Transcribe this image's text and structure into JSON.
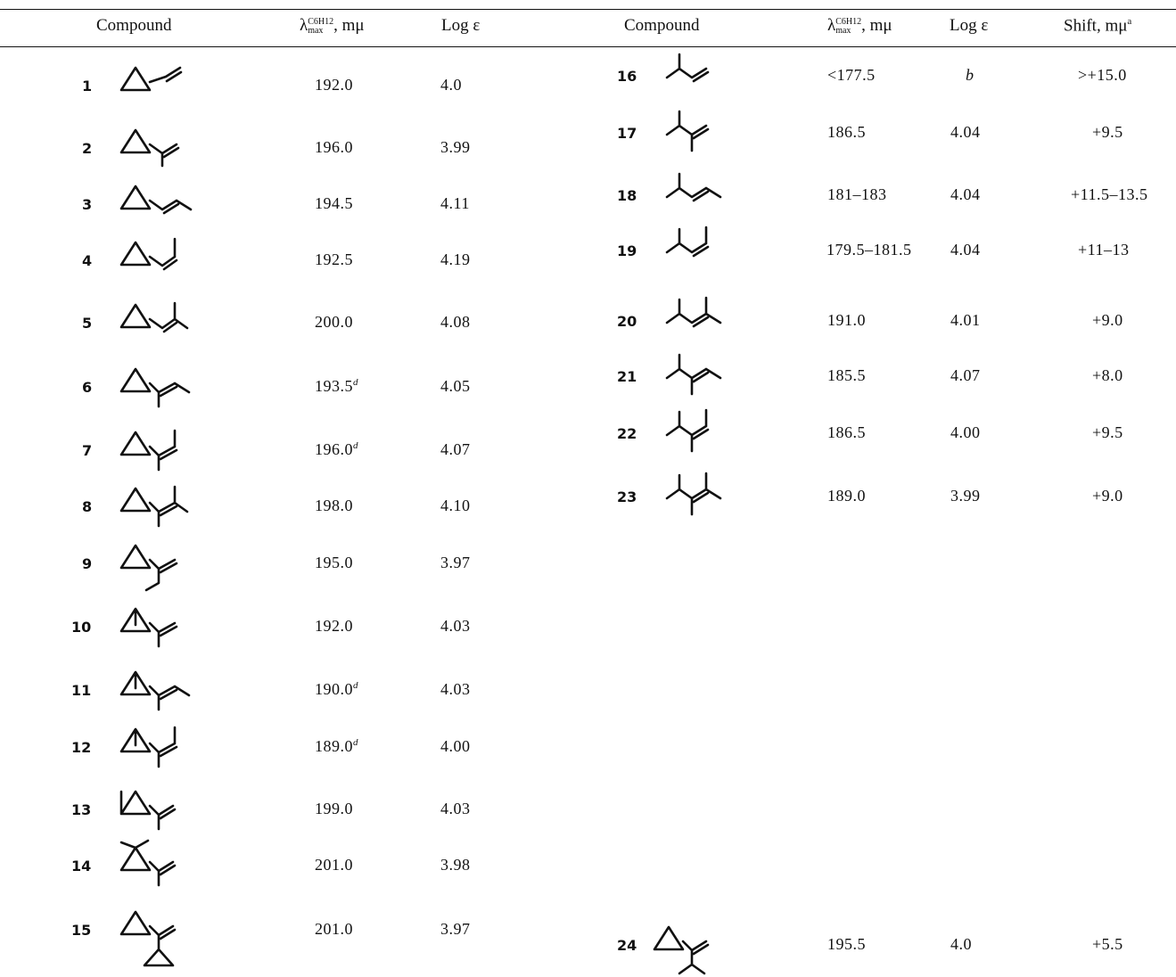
{
  "headers": {
    "left": {
      "compound": "Compound",
      "lambda_symbol": "λ",
      "lambda_sup": "C6H12",
      "lambda_sub": "max",
      "lambda_unit": ", mμ",
      "log_eps": "Log ε"
    },
    "right": {
      "compound": "Compound",
      "lambda_symbol": "λ",
      "lambda_sup": "C6H12",
      "lambda_sub": "max",
      "lambda_unit": ", mμ",
      "log_eps": "Log ε",
      "shift": "Shift, mμ",
      "shift_sup": "a"
    }
  },
  "left_rows": [
    {
      "num": "1",
      "lambda": "192.0",
      "sup": "",
      "log_eps": "4.0"
    },
    {
      "num": "2",
      "lambda": "196.0",
      "sup": "",
      "log_eps": "3.99"
    },
    {
      "num": "3",
      "lambda": "194.5",
      "sup": "",
      "log_eps": "4.11"
    },
    {
      "num": "4",
      "lambda": "192.5",
      "sup": "",
      "log_eps": "4.19"
    },
    {
      "num": "5",
      "lambda": "200.0",
      "sup": "",
      "log_eps": "4.08"
    },
    {
      "num": "6",
      "lambda": "193.5",
      "sup": "d",
      "log_eps": "4.05"
    },
    {
      "num": "7",
      "lambda": "196.0",
      "sup": "d",
      "log_eps": "4.07"
    },
    {
      "num": "8",
      "lambda": "198.0",
      "sup": "",
      "log_eps": "4.10"
    },
    {
      "num": "9",
      "lambda": "195.0",
      "sup": "",
      "log_eps": "3.97"
    },
    {
      "num": "10",
      "lambda": "192.0",
      "sup": "",
      "log_eps": "4.03"
    },
    {
      "num": "11",
      "lambda": "190.0",
      "sup": "d",
      "log_eps": "4.03"
    },
    {
      "num": "12",
      "lambda": "189.0",
      "sup": "d",
      "log_eps": "4.00"
    },
    {
      "num": "13",
      "lambda": "199.0",
      "sup": "",
      "log_eps": "4.03"
    },
    {
      "num": "14",
      "lambda": "201.0",
      "sup": "",
      "log_eps": "3.98"
    },
    {
      "num": "15",
      "lambda": "201.0",
      "sup": "",
      "log_eps": "3.97"
    }
  ],
  "right_rows": [
    {
      "num": "16",
      "lambda": "<177.5",
      "log_eps": "b",
      "shift": ">+15.0"
    },
    {
      "num": "17",
      "lambda": "186.5",
      "log_eps": "4.04",
      "shift": "+9.5"
    },
    {
      "num": "18",
      "lambda": "181–183",
      "log_eps": "4.04",
      "shift": "+11.5–13.5"
    },
    {
      "num": "19",
      "lambda": "179.5–181.5",
      "log_eps": "4.04",
      "shift": "+11–13"
    },
    {
      "num": "20",
      "lambda": "191.0",
      "log_eps": "4.01",
      "shift": "+9.0"
    },
    {
      "num": "21",
      "lambda": "185.5",
      "log_eps": "4.07",
      "shift": "+8.0"
    },
    {
      "num": "22",
      "lambda": "186.5",
      "log_eps": "4.00",
      "shift": "+9.5"
    },
    {
      "num": "23",
      "lambda": "189.0",
      "log_eps": "3.99",
      "shift": "+9.0"
    },
    {
      "num": "24",
      "lambda": "195.5",
      "log_eps": "4.0",
      "shift": "+5.5"
    }
  ]
}
